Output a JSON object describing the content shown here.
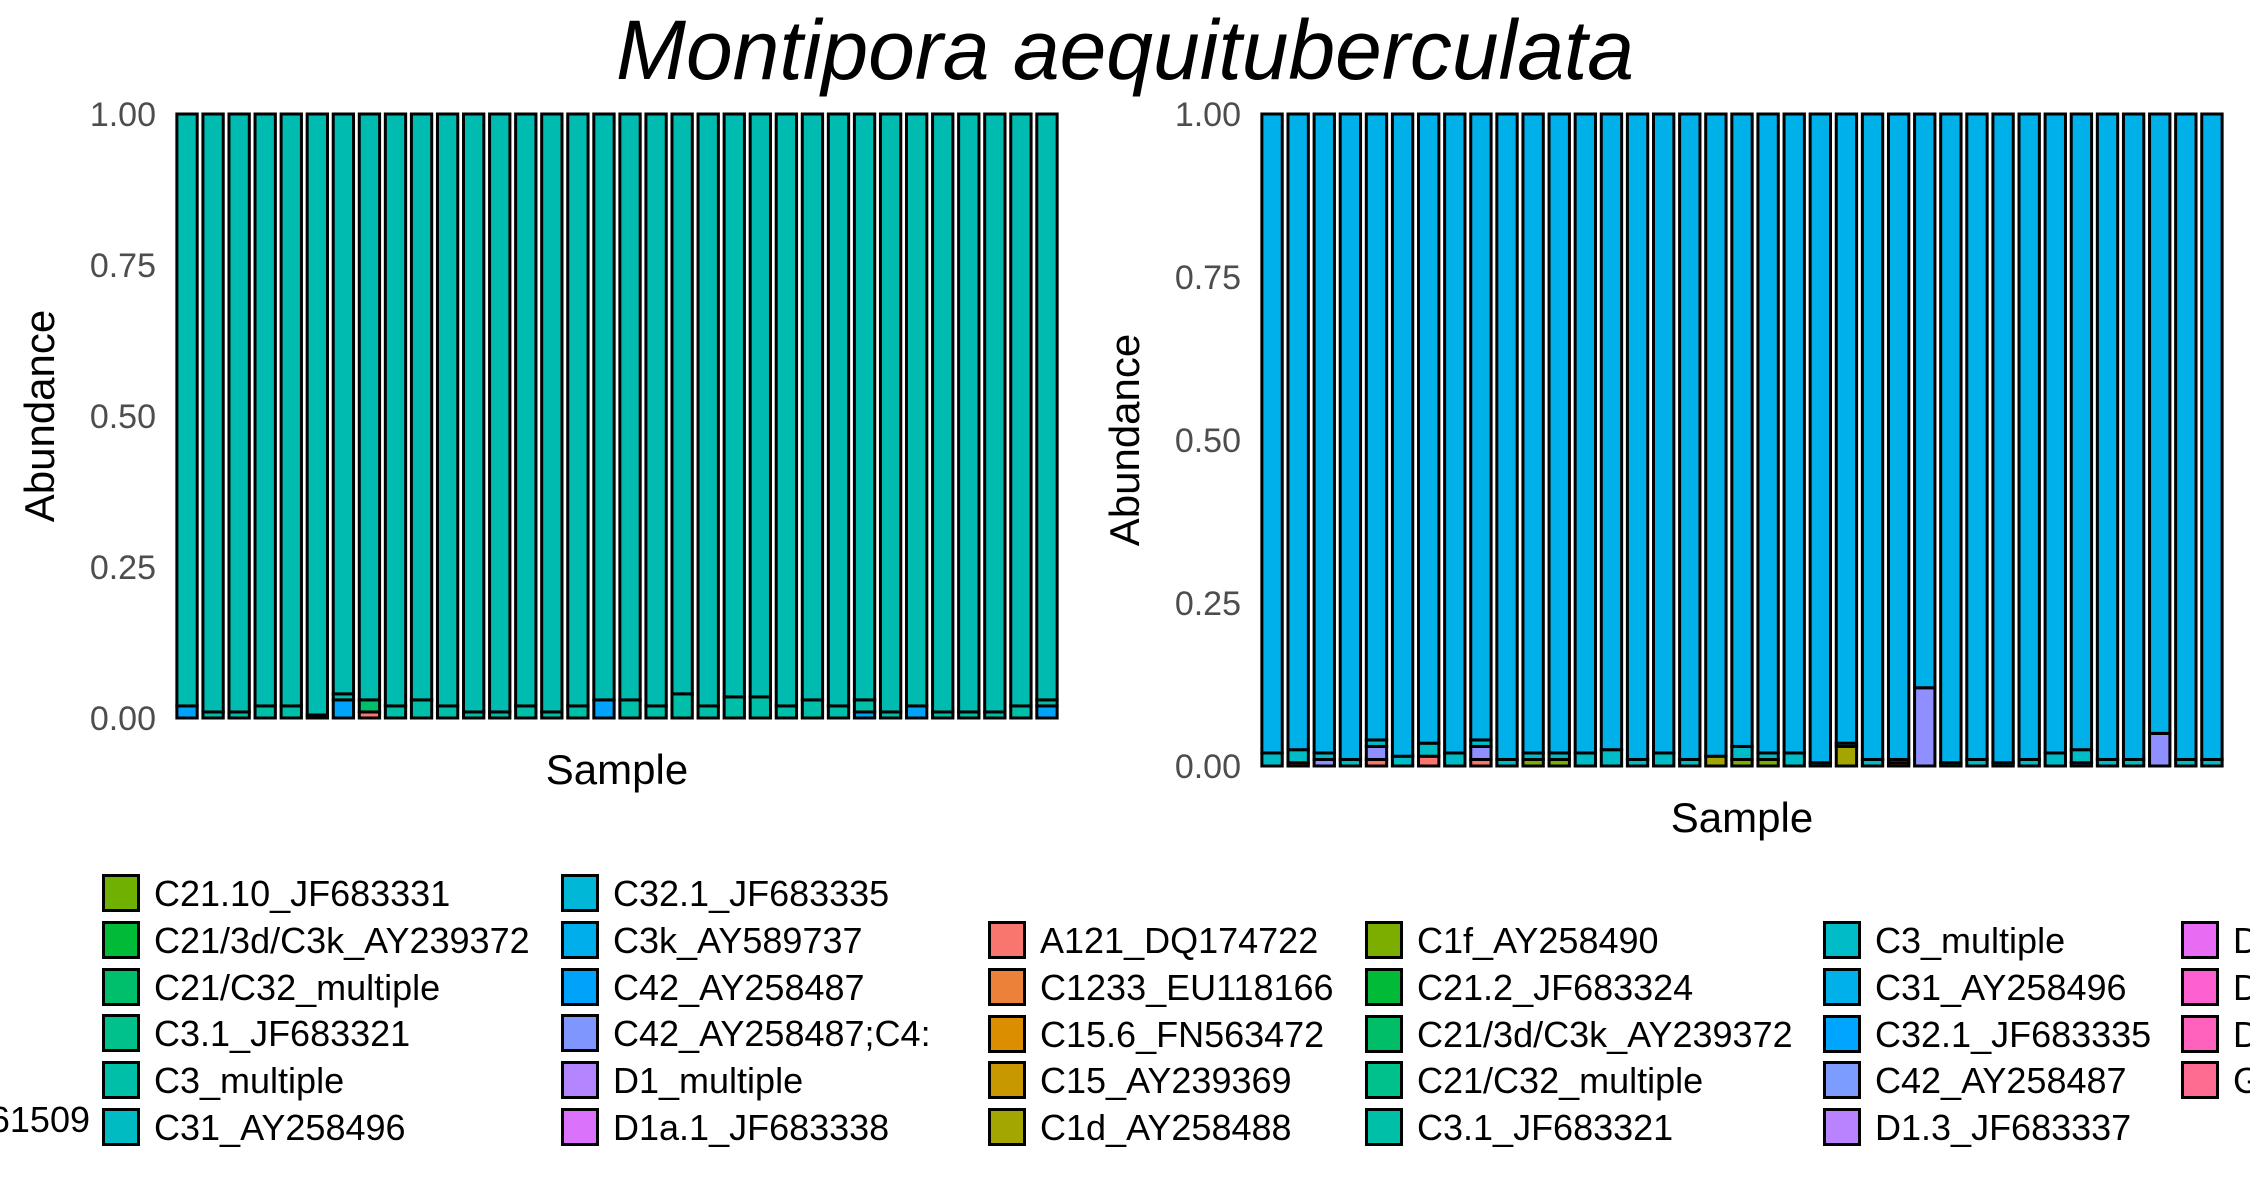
{
  "title": "Montipora aequituberculata",
  "chart_data": [
    {
      "type": "bar",
      "stacked": true,
      "xlabel": "Sample",
      "ylabel": "Abundance",
      "ylim": [
        0,
        1
      ],
      "yticks": [
        "0.00",
        "0.25",
        "0.50",
        "0.75",
        "1.00"
      ],
      "n_samples": 34,
      "base_series": "C31_AY258496",
      "samples": [
        {
          "C42_AY258487": 0.02
        },
        {
          "C3_multiple": 0.01
        },
        {
          "C3_multiple": 0.01
        },
        {
          "C3_multiple": 0.02
        },
        {
          "C3_multiple": 0.02
        },
        {
          "C3_multiple": 0.005
        },
        {
          "C42_AY258487": 0.03,
          "C3_multiple": 0.01
        },
        {
          "A121_DQ174722": 0.01,
          "C21/C32_multiple": 0.02
        },
        {
          "C3_multiple": 0.02
        },
        {
          "C3_multiple": 0.03
        },
        {
          "C3_multiple": 0.02
        },
        {
          "C3_multiple": 0.01
        },
        {
          "C3_multiple": 0.01
        },
        {
          "C3_multiple": 0.02
        },
        {
          "C3_multiple": 0.01
        },
        {
          "C3_multiple": 0.02
        },
        {
          "C42_AY258487": 0.03
        },
        {
          "C3_multiple": 0.03
        },
        {
          "C3_multiple": 0.02
        },
        {
          "C3_multiple": 0.04
        },
        {
          "C3_multiple": 0.02
        },
        {
          "C3_multiple": 0.035
        },
        {
          "C3_multiple": 0.035
        },
        {
          "C3_multiple": 0.02
        },
        {
          "C3_multiple": 0.03
        },
        {
          "C3_multiple": 0.02
        },
        {
          "C42_AY258487": 0.01,
          "C3_multiple": 0.02
        },
        {
          "C3_multiple": 0.01
        },
        {
          "C42_AY258487": 0.02
        },
        {
          "C3_multiple": 0.01
        },
        {
          "C3_multiple": 0.01
        },
        {
          "C3_multiple": 0.01
        },
        {
          "C3_multiple": 0.02
        },
        {
          "C42_AY258487": 0.02,
          "C3_multiple": 0.01
        }
      ]
    },
    {
      "type": "bar",
      "stacked": true,
      "xlabel": "Sample",
      "ylabel": "Abundance",
      "ylim": [
        0,
        1
      ],
      "yticks": [
        "0.00",
        "0.25",
        "0.50",
        "0.75",
        "1.00"
      ],
      "n_samples": 37,
      "base_series": "C31_AY258496",
      "samples": [
        {
          "C3_multiple": 0.02
        },
        {
          "C1233_EU118166": 0.005,
          "C3_multiple": 0.02
        },
        {
          "D1.3_JF683337": 0.01,
          "C3_multiple": 0.01
        },
        {
          "C3_multiple": 0.01
        },
        {
          "A121_DQ174722": 0.01,
          "D1.3_JF683337": 0.02,
          "C3_multiple": 0.01
        },
        {
          "C3_multiple": 0.015
        },
        {
          "A121_DQ174722": 0.015,
          "C3_multiple": 0.02
        },
        {
          "C3_multiple": 0.02
        },
        {
          "A121_DQ174722": 0.01,
          "D1.3_JF683337": 0.02,
          "C3_multiple": 0.01
        },
        {
          "C3_multiple": 0.01
        },
        {
          "C1f_AY258490": 0.01,
          "C3_multiple": 0.01
        },
        {
          "C1f_AY258490": 0.01,
          "C3_multiple": 0.01
        },
        {
          "C3_multiple": 0.02
        },
        {
          "C3_multiple": 0.025
        },
        {
          "C3_multiple": 0.01
        },
        {
          "C3_multiple": 0.02
        },
        {
          "C3_multiple": 0.01
        },
        {
          "C1d_AY258488": 0.015
        },
        {
          "C1f_AY258490": 0.01,
          "C3_multiple": 0.02
        },
        {
          "C1f_AY258490": 0.01,
          "C3_multiple": 0.01
        },
        {
          "C3_multiple": 0.02
        },
        {
          "C3_multiple": 0.005
        },
        {
          "C1d_AY258488": 0.03,
          "C3_multiple": 0.005
        },
        {
          "C3_multiple": 0.01
        },
        {
          "C1233_EU118166": 0.005,
          "C3_multiple": 0.005
        },
        {
          "D1.3_JF683337": 0.12
        },
        {
          "C3_multiple": 0.005
        },
        {
          "C3_multiple": 0.01
        },
        {
          "C3_multiple": 0.005
        },
        {
          "C3_multiple": 0.01
        },
        {
          "C3_multiple": 0.02
        },
        {
          "D1.3_JF683337": 0.005,
          "C3_multiple": 0.02
        },
        {
          "C3_multiple": 0.01
        },
        {
          "C3_multiple": 0.01
        },
        {
          "D1.3_JF683337": 0.05
        },
        {
          "C3_multiple": 0.01
        },
        {
          "C3_multiple": 0.01
        }
      ]
    }
  ],
  "legend_left": {
    "cut_label": "61509",
    "col1": [
      {
        "label": "C21.10_JF683331",
        "color": "#6fb000"
      },
      {
        "label": "C21/3d/C3k_AY239372",
        "color": "#00ba38"
      },
      {
        "label": "C21/C32_multiple",
        "color": "#00bf6c"
      },
      {
        "label": "C3.1_JF683321",
        "color": "#00c08b"
      },
      {
        "label": "C3_multiple",
        "color": "#00bfa8"
      },
      {
        "label": "C31_AY258496",
        "color": "#00bcc2"
      }
    ],
    "col2": [
      {
        "label": "C32.1_JF683335",
        "color": "#00b7d8"
      },
      {
        "label": "C3k_AY589737",
        "color": "#00aeeb"
      },
      {
        "label": "C42_AY258487",
        "color": "#00a2fa"
      },
      {
        "label": "C42_AY258487;C4:",
        "color": "#7f96ff"
      },
      {
        "label": "D1_multiple",
        "color": "#b385ff"
      },
      {
        "label": "D1a.1_JF683338",
        "color": "#db72fb"
      }
    ]
  },
  "legend_right": {
    "col1": [
      {
        "label": "A121_DQ174722",
        "color": "#f8766d"
      },
      {
        "label": "C1233_EU118166",
        "color": "#ec8239"
      },
      {
        "label": "C15.6_FN563472",
        "color": "#db8e00"
      },
      {
        "label": "C15_AY239369",
        "color": "#c79800"
      },
      {
        "label": "C1d_AY258488",
        "color": "#a3a500"
      }
    ],
    "col2": [
      {
        "label": "C1f_AY258490",
        "color": "#7cae00"
      },
      {
        "label": "C21.2_JF683324",
        "color": "#00ba38"
      },
      {
        "label": "C21/3d/C3k_AY239372",
        "color": "#00be67"
      },
      {
        "label": "C21/C32_multiple",
        "color": "#00c08b"
      },
      {
        "label": "C3.1_JF683321",
        "color": "#00bfa8"
      }
    ],
    "col3": [
      {
        "label": "C3_multiple",
        "color": "#00bcc6"
      },
      {
        "label": "C31_AY258496",
        "color": "#00b0e8"
      },
      {
        "label": "C32.1_JF683335",
        "color": "#00a5ff"
      },
      {
        "label": "C42_AY258487",
        "color": "#7c9cff"
      },
      {
        "label": "D1.3_JF683337",
        "color": "#b983ff"
      }
    ],
    "col4": [
      {
        "label": "D",
        "color": "#e76bf3"
      },
      {
        "label": "D",
        "color": "#fd61d1"
      },
      {
        "label": "D",
        "color": "#ff62bc"
      },
      {
        "label": "G",
        "color": "#ff6c91"
      }
    ]
  },
  "series_colors_left": {
    "A121_DQ174722": "#f8766d",
    "C21/C32_multiple": "#00bf6c",
    "C3_multiple": "#00bfa8",
    "C31_AY258496": "#00bcb0",
    "C42_AY258487": "#00a2fa"
  },
  "series_colors_right": {
    "A121_DQ174722": "#f8766d",
    "C1233_EU118166": "#ec8239",
    "C1d_AY258488": "#a3a500",
    "C1f_AY258490": "#7cae00",
    "C3_multiple": "#00bcc6",
    "C31_AY258496": "#00b0e8",
    "D1.3_JF683337": "#8f8fff"
  }
}
